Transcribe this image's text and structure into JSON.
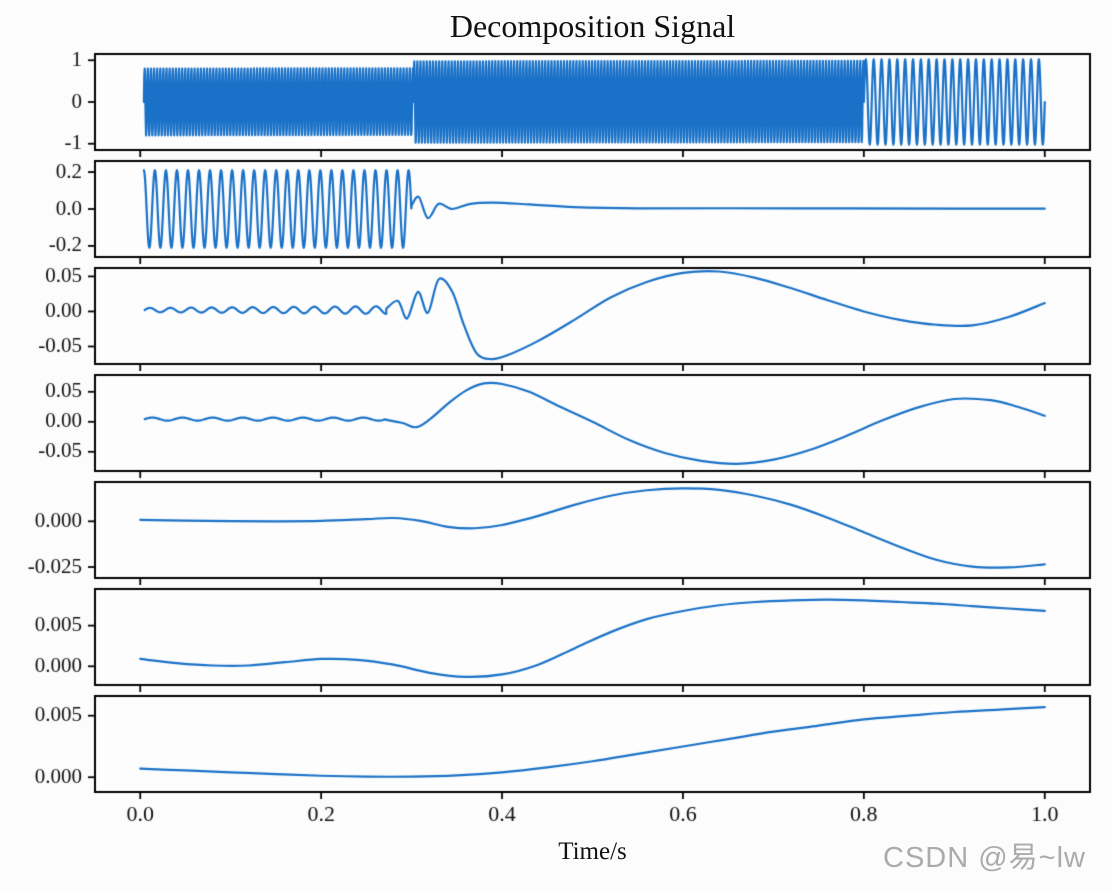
{
  "watermark": "CSDN @易~lw",
  "colors": {
    "line": "#1a72c8",
    "frame": "#000000",
    "text": "#111111",
    "background": "#fcfcfc",
    "axes_background": "#fdfdfd",
    "watermark": "#ababab"
  },
  "chart_data": {
    "type": "line",
    "title": "Decomposition Signal",
    "xlabel": "Time/s",
    "x_range": [
      -0.05,
      1.05
    ],
    "x_tick_values": [
      0.0,
      0.2,
      0.4,
      0.6,
      0.8,
      1.0
    ],
    "x_tick_labels": [
      "0.0",
      "0.2",
      "0.4",
      "0.6",
      "0.8",
      "1.0"
    ],
    "subplots": [
      {
        "ylim": [
          -1.15,
          1.15
        ],
        "yticks": [
          {
            "v": 1,
            "label": "1"
          },
          {
            "v": 0,
            "label": "0"
          },
          {
            "v": -1,
            "label": "-1"
          }
        ],
        "segments": [
          {
            "kind": "osc",
            "t0": 0.004,
            "t1": 0.302,
            "freq": 290,
            "amp0": 0.82,
            "amp1": 0.82,
            "bias": 0,
            "phase": 0
          },
          {
            "kind": "osc",
            "t0": 0.302,
            "t1": 0.8,
            "freq": 290,
            "amp0": 1.0,
            "amp1": 1.0,
            "bias": 0,
            "phase": 0
          },
          {
            "kind": "osc",
            "t0": 0.8,
            "t1": 1.0,
            "freq": 115,
            "amp0": 1.02,
            "amp1": 1.02,
            "bias": 0,
            "phase": 0
          }
        ]
      },
      {
        "ylim": [
          -0.26,
          0.26
        ],
        "yticks": [
          {
            "v": 0.2,
            "label": "0.2"
          },
          {
            "v": 0,
            "label": "0.0"
          },
          {
            "v": -0.2,
            "label": "-0.2"
          }
        ],
        "segments": [
          {
            "kind": "osc",
            "t0": 0.004,
            "t1": 0.2997,
            "freq": 82,
            "amp0": 0.21,
            "amp1": 0.21,
            "bias": 0,
            "phase": 1.5708
          },
          {
            "kind": "path",
            "points": [
              [
                0.3,
                0.02
              ],
              [
                0.308,
                0.065
              ],
              [
                0.318,
                -0.05
              ],
              [
                0.33,
                0.028
              ],
              [
                0.345,
                0
              ],
              [
                0.365,
                0.028
              ],
              [
                0.39,
                0.035
              ],
              [
                0.43,
                0.025
              ],
              [
                0.48,
                0.01
              ],
              [
                0.55,
                0.003
              ],
              [
                0.65,
                0.004
              ],
              [
                0.78,
                0.003
              ],
              [
                0.9,
                0.002
              ],
              [
                1,
                0.002
              ]
            ]
          }
        ]
      },
      {
        "ylim": [
          -0.075,
          0.062
        ],
        "yticks": [
          {
            "v": 0.05,
            "label": "0.05"
          },
          {
            "v": 0,
            "label": "0.00"
          },
          {
            "v": -0.05,
            "label": "-0.05"
          }
        ],
        "segments": [
          {
            "kind": "osc",
            "t0": 0.005,
            "t1": 0.272,
            "freq": 44,
            "amp0": 0.003,
            "amp1": 0.0055,
            "bias": 0.002,
            "phase": 0
          },
          {
            "kind": "path",
            "points": [
              [
                0.272,
                0.004
              ],
              [
                0.285,
                0.015
              ],
              [
                0.295,
                -0.01
              ],
              [
                0.307,
                0.028
              ],
              [
                0.318,
                -0.002
              ],
              [
                0.33,
                0.046
              ],
              [
                0.345,
                0.028
              ],
              [
                0.358,
                -0.02
              ],
              [
                0.372,
                -0.06
              ],
              [
                0.388,
                -0.068
              ],
              [
                0.405,
                -0.063
              ],
              [
                0.44,
                -0.042
              ],
              [
                0.48,
                -0.012
              ],
              [
                0.52,
                0.02
              ],
              [
                0.56,
                0.042
              ],
              [
                0.6,
                0.055
              ],
              [
                0.64,
                0.057
              ],
              [
                0.68,
                0.048
              ],
              [
                0.72,
                0.033
              ],
              [
                0.76,
                0.016
              ],
              [
                0.8,
                0
              ],
              [
                0.84,
                -0.012
              ],
              [
                0.88,
                -0.019
              ],
              [
                0.92,
                -0.02
              ],
              [
                0.96,
                -0.008
              ],
              [
                1,
                0.012
              ]
            ]
          }
        ]
      },
      {
        "ylim": [
          -0.082,
          0.078
        ],
        "yticks": [
          {
            "v": 0.05,
            "label": "0.05"
          },
          {
            "v": 0,
            "label": "0.00"
          },
          {
            "v": -0.05,
            "label": "-0.05"
          }
        ],
        "segments": [
          {
            "kind": "osc",
            "t0": 0.005,
            "t1": 0.27,
            "freq": 30,
            "amp0": 0.0025,
            "amp1": 0.0025,
            "bias": 0.0045,
            "phase": 0
          },
          {
            "kind": "path",
            "points": [
              [
                0.27,
                0.004
              ],
              [
                0.29,
                -0.002
              ],
              [
                0.305,
                -0.009
              ],
              [
                0.32,
                0.004
              ],
              [
                0.34,
                0.03
              ],
              [
                0.36,
                0.052
              ],
              [
                0.38,
                0.064
              ],
              [
                0.4,
                0.063
              ],
              [
                0.43,
                0.05
              ],
              [
                0.46,
                0.028
              ],
              [
                0.5,
                0
              ],
              [
                0.54,
                -0.03
              ],
              [
                0.58,
                -0.052
              ],
              [
                0.62,
                -0.065
              ],
              [
                0.66,
                -0.07
              ],
              [
                0.7,
                -0.063
              ],
              [
                0.74,
                -0.047
              ],
              [
                0.78,
                -0.024
              ],
              [
                0.82,
                0.002
              ],
              [
                0.86,
                0.024
              ],
              [
                0.9,
                0.038
              ],
              [
                0.94,
                0.036
              ],
              [
                0.97,
                0.025
              ],
              [
                1,
                0.01
              ]
            ]
          }
        ]
      },
      {
        "ylim": [
          -0.031,
          0.0215
        ],
        "yticks": [
          {
            "v": 0,
            "label": "0.000"
          },
          {
            "v": -0.025,
            "label": "-0.025"
          }
        ],
        "segments": [
          {
            "kind": "path",
            "points": [
              [
                0,
                0.0008
              ],
              [
                0.05,
                0.0004
              ],
              [
                0.1,
                0.0001
              ],
              [
                0.15,
                0
              ],
              [
                0.2,
                0.0002
              ],
              [
                0.25,
                0.0012
              ],
              [
                0.28,
                0.0018
              ],
              [
                0.31,
                0.0002
              ],
              [
                0.34,
                -0.003
              ],
              [
                0.37,
                -0.0038
              ],
              [
                0.4,
                -0.002
              ],
              [
                0.44,
                0.003
              ],
              [
                0.48,
                0.009
              ],
              [
                0.52,
                0.014
              ],
              [
                0.56,
                0.017
              ],
              [
                0.6,
                0.018
              ],
              [
                0.64,
                0.0172
              ],
              [
                0.68,
                0.014
              ],
              [
                0.72,
                0.009
              ],
              [
                0.76,
                0.002
              ],
              [
                0.8,
                -0.006
              ],
              [
                0.84,
                -0.014
              ],
              [
                0.88,
                -0.021
              ],
              [
                0.92,
                -0.0248
              ],
              [
                0.96,
                -0.0252
              ],
              [
                1,
                -0.0235
              ]
            ]
          }
        ]
      },
      {
        "ylim": [
          -0.0023,
          0.0095
        ],
        "yticks": [
          {
            "v": 0.005,
            "label": "0.005"
          },
          {
            "v": 0,
            "label": "0.000"
          }
        ],
        "segments": [
          {
            "kind": "path",
            "points": [
              [
                0,
                0.0009
              ],
              [
                0.04,
                0.0004
              ],
              [
                0.08,
                0.0001
              ],
              [
                0.12,
                0.0001
              ],
              [
                0.16,
                0.0005
              ],
              [
                0.2,
                0.0009
              ],
              [
                0.24,
                0.0008
              ],
              [
                0.28,
                0.0002
              ],
              [
                0.32,
                -0.0008
              ],
              [
                0.36,
                -0.0013
              ],
              [
                0.4,
                -0.001
              ],
              [
                0.44,
                0.0002
              ],
              [
                0.48,
                0.0022
              ],
              [
                0.52,
                0.0042
              ],
              [
                0.56,
                0.0058
              ],
              [
                0.6,
                0.0068
              ],
              [
                0.64,
                0.0075
              ],
              [
                0.68,
                0.0079
              ],
              [
                0.72,
                0.0081
              ],
              [
                0.76,
                0.0082
              ],
              [
                0.8,
                0.0081
              ],
              [
                0.84,
                0.0079
              ],
              [
                0.88,
                0.0077
              ],
              [
                0.92,
                0.0074
              ],
              [
                0.96,
                0.0071
              ],
              [
                1,
                0.0068
              ]
            ]
          }
        ]
      },
      {
        "ylim": [
          -0.0012,
          0.0066
        ],
        "yticks": [
          {
            "v": 0.005,
            "label": "0.005"
          },
          {
            "v": 0,
            "label": "0.000"
          }
        ],
        "segments": [
          {
            "kind": "path",
            "points": [
              [
                0,
                0.0007
              ],
              [
                0.05,
                0.00055
              ],
              [
                0.1,
                0.0004
              ],
              [
                0.15,
                0.00025
              ],
              [
                0.2,
                0.00012
              ],
              [
                0.25,
                5e-05
              ],
              [
                0.3,
                5e-05
              ],
              [
                0.35,
                0.00015
              ],
              [
                0.4,
                0.0004
              ],
              [
                0.45,
                0.0008
              ],
              [
                0.5,
                0.0013
              ],
              [
                0.55,
                0.0019
              ],
              [
                0.6,
                0.0025
              ],
              [
                0.65,
                0.0031
              ],
              [
                0.7,
                0.0037
              ],
              [
                0.75,
                0.0042
              ],
              [
                0.8,
                0.0047
              ],
              [
                0.85,
                0.005
              ],
              [
                0.9,
                0.0053
              ],
              [
                0.95,
                0.0055
              ],
              [
                1,
                0.0057
              ]
            ]
          }
        ]
      }
    ]
  }
}
